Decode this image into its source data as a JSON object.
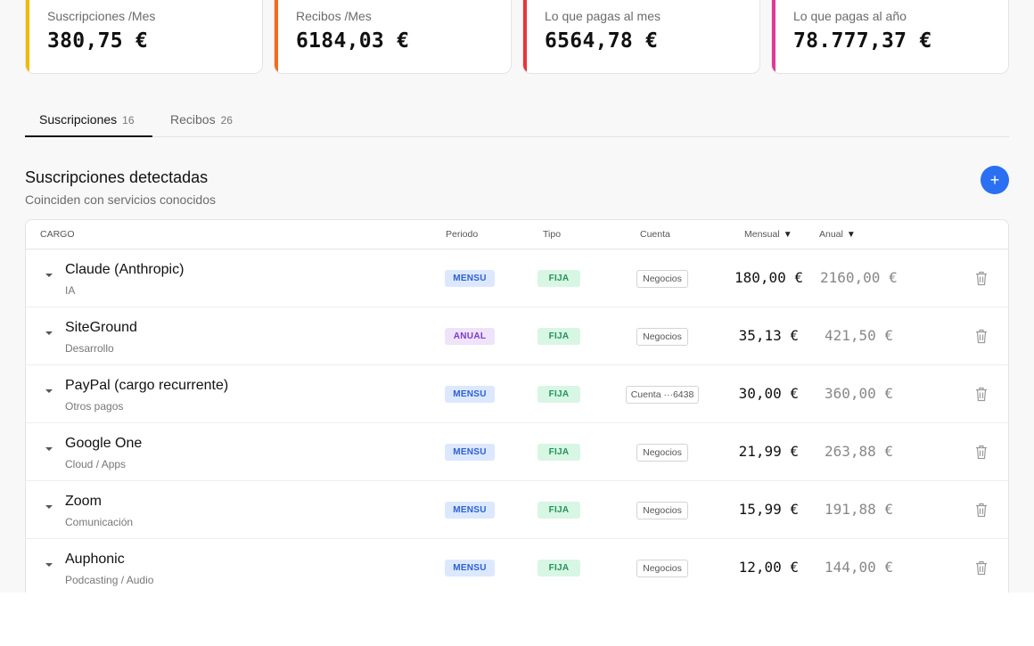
{
  "stats": [
    {
      "label": "Suscripciones /Mes",
      "value": "380,75 €",
      "accent": "#f5b800"
    },
    {
      "label": "Recibos /Mes",
      "value": "6184,03 €",
      "accent": "#f26c1b"
    },
    {
      "label": "Lo que pagas al mes",
      "value": "6564,78 €",
      "accent": "#e8343a"
    },
    {
      "label": "Lo que pagas al año",
      "value": "78.777,37 €",
      "accent": "#e0389a"
    }
  ],
  "tabs": [
    {
      "label": "Suscripciones",
      "count": "16",
      "active": true
    },
    {
      "label": "Recibos",
      "count": "26",
      "active": false
    }
  ],
  "section": {
    "title": "Suscripciones detectadas",
    "subtitle": "Coinciden con servicios conocidos",
    "add_label": "+"
  },
  "table": {
    "headers": {
      "cargo": "CARGO",
      "periodo": "Periodo",
      "tipo": "Tipo",
      "cuenta": "Cuenta",
      "mensual": "Mensual",
      "anual": "Anual",
      "sort_arrow": "▼"
    },
    "rows": [
      {
        "name": "Claude (Anthropic)",
        "category": "IA",
        "periodo": "MENSU",
        "tipo": "FIJA",
        "cuenta": "Negocios",
        "mensual": "180,00 €",
        "anual": "2160,00 €"
      },
      {
        "name": "SiteGround",
        "category": "Desarrollo",
        "periodo": "ANUAL",
        "tipo": "FIJA",
        "cuenta": "Negocios",
        "mensual": "35,13 €",
        "anual": "421,50 €"
      },
      {
        "name": "PayPal (cargo recurrente)",
        "category": "Otros pagos",
        "periodo": "MENSU",
        "tipo": "FIJA",
        "cuenta": "Cuenta ···6438",
        "mensual": "30,00 €",
        "anual": "360,00 €"
      },
      {
        "name": "Google One",
        "category": "Cloud / Apps",
        "periodo": "MENSU",
        "tipo": "FIJA",
        "cuenta": "Negocios",
        "mensual": "21,99 €",
        "anual": "263,88 €"
      },
      {
        "name": "Zoom",
        "category": "Comunicación",
        "periodo": "MENSU",
        "tipo": "FIJA",
        "cuenta": "Negocios",
        "mensual": "15,99 €",
        "anual": "191,88 €"
      },
      {
        "name": "Auphonic",
        "category": "Podcasting / Audio",
        "periodo": "MENSU",
        "tipo": "FIJA",
        "cuenta": "Negocios",
        "mensual": "12,00 €",
        "anual": "144,00 €"
      }
    ]
  }
}
